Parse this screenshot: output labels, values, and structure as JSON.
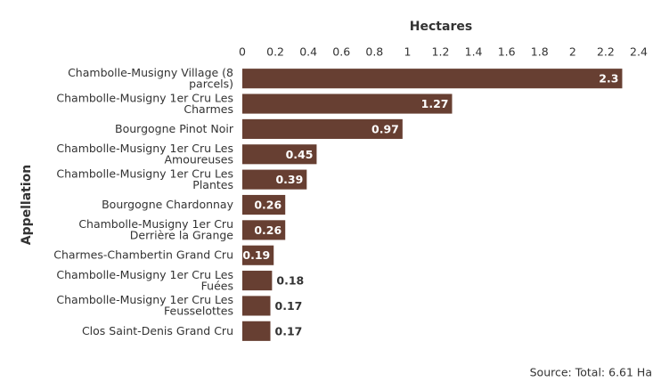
{
  "chart_data": {
    "type": "bar",
    "orientation": "horizontal",
    "x_label": "Hectares",
    "y_label": "Appellation",
    "source": "Source: Total: 6.61 Ha",
    "categories": [
      "Chambolle-Musigny Village (8 parcels)",
      "Chambolle-Musigny 1er Cru Les Charmes",
      "Bourgogne Pinot Noir",
      "Chambolle-Musigny 1er Cru Les Amoureuses",
      "Chambolle-Musigny 1er Cru Les Plantes",
      "Bourgogne Chardonnay",
      "Chambolle-Musigny 1er Cru Derrière la Grange",
      "Charmes-Chambertin Grand Cru",
      "Chambolle-Musigny 1er Cru Les Fuées",
      "Chambolle-Musigny 1er Cru Les Feusselottes",
      "Clos Saint-Denis Grand Cru"
    ],
    "values": [
      2.3,
      1.27,
      0.97,
      0.45,
      0.39,
      0.26,
      0.26,
      0.19,
      0.18,
      0.17,
      0.17
    ],
    "color": "#673f32",
    "xlim": [
      0,
      2.4
    ],
    "xticks": [
      0,
      0.2,
      0.4,
      0.6,
      0.8,
      1,
      1.2,
      1.4,
      1.6,
      1.8,
      2,
      2.2,
      2.4
    ],
    "grid": false
  }
}
